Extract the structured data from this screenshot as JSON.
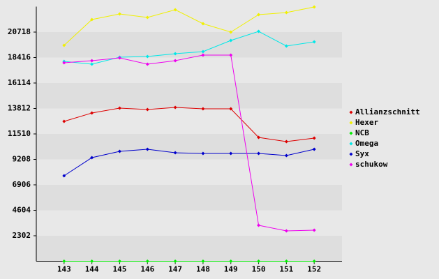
{
  "chart_data": {
    "type": "line",
    "x": [
      143,
      144,
      145,
      146,
      147,
      148,
      149,
      150,
      151,
      152
    ],
    "xlim": [
      142,
      153
    ],
    "xticks": [
      143,
      144,
      145,
      146,
      147,
      148,
      149,
      150,
      151,
      152
    ],
    "ylim": [
      0,
      23020
    ],
    "yticks": [
      2302,
      4604,
      6906,
      9208,
      11510,
      13812,
      16114,
      18416,
      20718
    ],
    "legend": "right",
    "series": [
      {
        "name": "Allianzschnitt",
        "color": "#dd0000",
        "values": [
          12645,
          13402,
          13843,
          13717,
          13906,
          13780,
          13780,
          11195,
          10816,
          11132
        ]
      },
      {
        "name": "Hexer",
        "color": "#f0f000",
        "values": [
          19520,
          21853,
          22358,
          22042,
          22736,
          21475,
          20718,
          22295,
          22484,
          22988
        ]
      },
      {
        "name": "NCB",
        "color": "#00ee00",
        "values": [
          0,
          0,
          0,
          0,
          0,
          0,
          0,
          0,
          0,
          0
        ]
      },
      {
        "name": "Omega",
        "color": "#00e8e8",
        "values": [
          18069,
          17817,
          18448,
          18511,
          18763,
          18952,
          19961,
          20781,
          19457,
          19835
        ]
      },
      {
        "name": "Syx",
        "color": "#0000cc",
        "values": [
          7726,
          9366,
          9933,
          10122,
          9807,
          9744,
          9744,
          9744,
          9555,
          10122
        ]
      },
      {
        "name": "schukow",
        "color": "#ee00ee",
        "values": [
          17943,
          18132,
          18384,
          17817,
          18132,
          18637,
          18637,
          3248,
          2743,
          2806
        ]
      }
    ]
  }
}
